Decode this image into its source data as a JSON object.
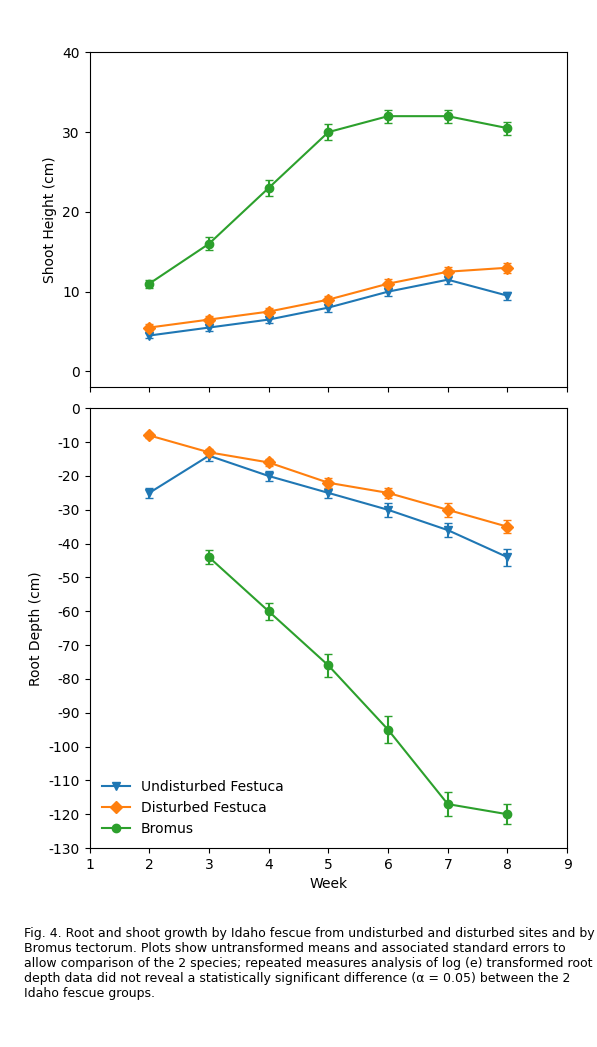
{
  "chart_data": [
    {
      "type": "line",
      "x": [
        2,
        3,
        4,
        5,
        6,
        7,
        8
      ],
      "series": [
        {
          "name": "Undisturbed Festuca",
          "marker": "triangle_down",
          "values": [
            4.5,
            5.5,
            6.5,
            8.0,
            10.0,
            11.5,
            9.5
          ],
          "errors": [
            0.3,
            0.4,
            0.4,
            0.5,
            0.6,
            0.6,
            0.5
          ]
        },
        {
          "name": "Disturbed Festuca",
          "marker": "diamond",
          "values": [
            5.5,
            6.5,
            7.5,
            9.0,
            11.0,
            12.5,
            13.0
          ],
          "errors": [
            0.4,
            0.4,
            0.5,
            0.5,
            0.6,
            0.6,
            0.6
          ]
        },
        {
          "name": "Bromus",
          "marker": "circle",
          "values": [
            11.0,
            16.0,
            23.0,
            30.0,
            32.0,
            32.0,
            30.5
          ],
          "errors": [
            0.5,
            0.8,
            1.0,
            1.0,
            0.8,
            0.8,
            0.8
          ]
        }
      ],
      "y_label": "Shoot Height (cm)",
      "xlim": [
        1,
        9
      ],
      "xticks": [
        1,
        2,
        3,
        4,
        5,
        6,
        7,
        8,
        9
      ],
      "ylim": [
        -2,
        40
      ],
      "yticks": [
        0,
        10,
        20,
        30,
        40
      ],
      "tick_labels": "y"
    },
    {
      "type": "line",
      "x": [
        2,
        3,
        4,
        5,
        6,
        7,
        8
      ],
      "series": [
        {
          "name": "Undisturbed Festuca",
          "marker": "triangle_down",
          "values": [
            -25.0,
            -14.0,
            -20.0,
            -25.0,
            -30.0,
            -36.0,
            -44.0
          ],
          "errors": [
            1.5,
            1.5,
            1.5,
            1.5,
            2.0,
            2.0,
            2.5
          ]
        },
        {
          "name": "Disturbed Festuca",
          "marker": "diamond",
          "values": [
            -8.0,
            -13.0,
            -16.0,
            -22.0,
            -25.0,
            -30.0,
            -35.0
          ],
          "errors": [
            0.8,
            1.0,
            1.0,
            1.5,
            1.5,
            2.0,
            2.0
          ]
        },
        {
          "name": "Bromus",
          "marker": "circle",
          "x": [
            3,
            4,
            5,
            6,
            7,
            8
          ],
          "values": [
            -44.0,
            -60.0,
            -76.0,
            -95.0,
            -117.0,
            -120.0
          ],
          "errors": [
            2.0,
            2.5,
            3.5,
            4.0,
            3.5,
            3.0
          ]
        }
      ],
      "x_label": "Week",
      "y_label": "Root Depth (cm)",
      "xlim": [
        1,
        9
      ],
      "xticks": [
        1,
        2,
        3,
        4,
        5,
        6,
        7,
        8,
        9
      ],
      "ylim": [
        -130,
        0
      ],
      "yticks": [
        -130,
        -120,
        -110,
        -100,
        -90,
        -80,
        -70,
        -60,
        -50,
        -40,
        -30,
        -20,
        -10,
        0
      ],
      "legend": "lower left",
      "caption": "Fig. 4. Root and shoot growth by Idaho fescue from undisturbed and disturbed sites and by Bromus tectorum. Plots show untransformed means and associated standard errors to allow comparison of the 2 species; repeated measures analysis of log (e) transformed root depth data did not reveal a statistically significant difference (α = 0.05) between the 2 Idaho fescue groups."
    }
  ]
}
